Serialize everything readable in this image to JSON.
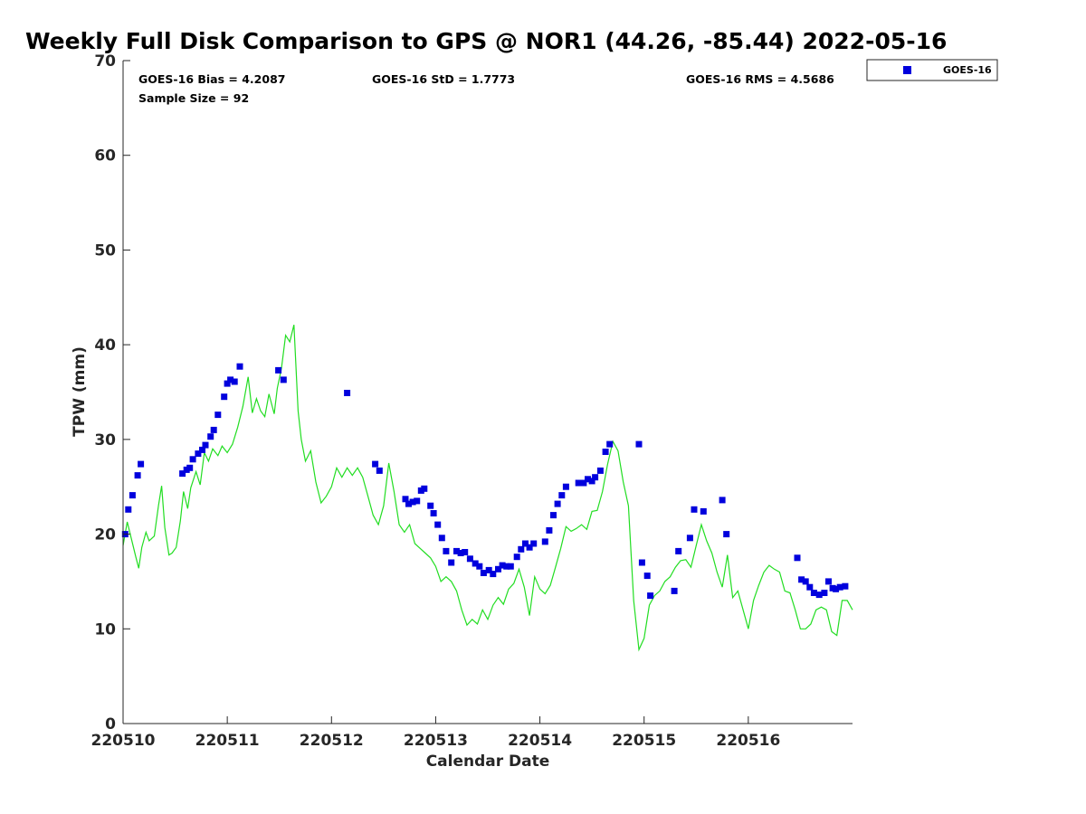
{
  "title": "Weekly Full Disk Comparison to GPS @ NOR1 (44.26, -85.44) 2022-05-16",
  "stats": {
    "bias": "GOES-16 Bias = 4.2087",
    "std": "GOES-16 StD = 1.7773",
    "rms": "GOES-16 RMS = 4.5686",
    "sample": "Sample Size = 92"
  },
  "legend": {
    "label": "GOES-16",
    "position": "top-right-outside"
  },
  "colors": {
    "goes": "#0000dd",
    "gps": "#22dd22",
    "axis": "#262626"
  },
  "chart_data": {
    "type": "scatter",
    "title": "Weekly Full Disk Comparison to GPS @ NOR1 (44.26, -85.44) 2022-05-16",
    "xlabel": "Calendar Date",
    "ylabel": "TPW (mm)",
    "xlim": [
      220510,
      220517
    ],
    "ylim": [
      0,
      70
    ],
    "x_ticks": [
      220510,
      220511,
      220512,
      220513,
      220514,
      220515,
      220516
    ],
    "x_tick_labels": [
      "220510",
      "220511",
      "220512",
      "220513",
      "220514",
      "220515",
      "220516"
    ],
    "y_ticks": [
      0,
      10,
      20,
      30,
      40,
      50,
      60,
      70
    ],
    "y_tick_labels": [
      "0",
      "10",
      "20",
      "30",
      "40",
      "50",
      "60",
      "70"
    ],
    "grid": false,
    "series": [
      {
        "name": "GOES-16",
        "type": "scatter",
        "x": [
          220510.02,
          220510.05,
          220510.09,
          220510.14,
          220510.17,
          220510.57,
          220510.61,
          220510.64,
          220510.67,
          220510.72,
          220510.76,
          220510.79,
          220510.84,
          220510.87,
          220510.91,
          220510.97,
          220511.0,
          220511.03,
          220511.07,
          220511.12,
          220511.49,
          220511.54,
          220512.15,
          220512.42,
          220512.46,
          220512.71,
          220512.74,
          220512.78,
          220512.82,
          220512.86,
          220512.89,
          220512.95,
          220512.98,
          220513.02,
          220513.06,
          220513.1,
          220513.15,
          220513.2,
          220513.24,
          220513.28,
          220513.33,
          220513.38,
          220513.42,
          220513.46,
          220513.51,
          220513.55,
          220513.6,
          220513.64,
          220513.68,
          220513.72,
          220513.78,
          220513.82,
          220513.86,
          220513.9,
          220513.94,
          220514.05,
          220514.09,
          220514.13,
          220514.17,
          220514.21,
          220514.25,
          220514.37,
          220514.42,
          220514.46,
          220514.5,
          220514.53,
          220514.58,
          220514.63,
          220514.67,
          220514.95,
          220514.98,
          220515.03,
          220515.06,
          220515.29,
          220515.33,
          220515.44,
          220515.48,
          220515.57,
          220515.75,
          220515.79,
          220516.47,
          220516.51,
          220516.55,
          220516.59,
          220516.63,
          220516.68,
          220516.73,
          220516.77,
          220516.81,
          220516.84,
          220516.88,
          220516.93
        ],
        "y": [
          20.0,
          22.6,
          24.1,
          26.2,
          27.4,
          26.4,
          26.8,
          27.0,
          27.9,
          28.5,
          28.9,
          29.4,
          30.3,
          31.0,
          32.6,
          34.5,
          35.9,
          36.3,
          36.1,
          37.7,
          37.3,
          36.3,
          34.9,
          27.4,
          26.7,
          23.7,
          23.2,
          23.4,
          23.5,
          24.6,
          24.8,
          23.0,
          22.2,
          21.0,
          19.6,
          18.2,
          17.0,
          18.2,
          18.0,
          18.1,
          17.4,
          16.9,
          16.6,
          15.9,
          16.2,
          15.8,
          16.3,
          16.7,
          16.6,
          16.6,
          17.6,
          18.4,
          19.0,
          18.6,
          19.0,
          19.2,
          20.4,
          22.0,
          23.2,
          24.1,
          25.0,
          25.4,
          25.4,
          25.8,
          25.6,
          26.0,
          26.7,
          28.7,
          29.5,
          29.5,
          17.0,
          15.6,
          13.5,
          14.0,
          18.2,
          19.6,
          22.6,
          22.4,
          23.6,
          20.0,
          17.5,
          15.2,
          15.0,
          14.4,
          13.8,
          13.6,
          13.8,
          15.0,
          14.3,
          14.2,
          14.4,
          14.5
        ]
      },
      {
        "name": "",
        "type": "line",
        "x": [
          220510.0,
          220510.04,
          220510.08,
          220510.12,
          220510.15,
          220510.18,
          220510.22,
          220510.25,
          220510.3,
          220510.34,
          220510.37,
          220510.4,
          220510.44,
          220510.47,
          220510.51,
          220510.55,
          220510.58,
          220510.62,
          220510.65,
          220510.7,
          220510.74,
          220510.78,
          220510.82,
          220510.86,
          220510.91,
          220510.95,
          220511.0,
          220511.05,
          220511.1,
          220511.15,
          220511.2,
          220511.24,
          220511.28,
          220511.32,
          220511.36,
          220511.4,
          220511.45,
          220511.48,
          220511.52,
          220511.56,
          220511.6,
          220511.64,
          220511.68,
          220511.71,
          220511.75,
          220511.8,
          220511.85,
          220511.9,
          220511.95,
          220512.0,
          220512.05,
          220512.1,
          220512.15,
          220512.2,
          220512.25,
          220512.3,
          220512.35,
          220512.4,
          220512.45,
          220512.5,
          220512.55,
          220512.6,
          220512.65,
          220512.7,
          220512.75,
          220512.8,
          220512.85,
          220512.9,
          220512.95,
          220513.0,
          220513.05,
          220513.1,
          220513.15,
          220513.2,
          220513.25,
          220513.3,
          220513.35,
          220513.4,
          220513.45,
          220513.5,
          220513.55,
          220513.6,
          220513.65,
          220513.7,
          220513.75,
          220513.8,
          220513.85,
          220513.9,
          220513.95,
          220514.0,
          220514.05,
          220514.1,
          220514.15,
          220514.2,
          220514.25,
          220514.3,
          220514.35,
          220514.4,
          220514.45,
          220514.5,
          220514.55,
          220514.6,
          220514.65,
          220514.7,
          220514.75,
          220514.8,
          220514.85,
          220514.9,
          220514.95,
          220515.0,
          220515.05,
          220515.1,
          220515.15,
          220515.2,
          220515.25,
          220515.3,
          220515.35,
          220515.4,
          220515.45,
          220515.5,
          220515.55,
          220515.6,
          220515.65,
          220515.7,
          220515.75,
          220515.8,
          220515.85,
          220515.9,
          220515.95,
          220516.0,
          220516.05,
          220516.1,
          220516.15,
          220516.2,
          220516.25,
          220516.3,
          220516.35,
          220516.4,
          220516.45,
          220516.5,
          220516.55,
          220516.6,
          220516.65,
          220516.7,
          220516.75,
          220516.8,
          220516.85,
          220516.9,
          220516.95,
          220517.0
        ],
        "y": [
          18.8,
          21.3,
          19.5,
          17.7,
          16.4,
          18.6,
          20.2,
          19.3,
          19.8,
          23.0,
          25.1,
          20.7,
          17.8,
          18.0,
          18.6,
          21.4,
          24.5,
          22.7,
          24.9,
          26.6,
          25.2,
          28.6,
          27.7,
          29.0,
          28.3,
          29.3,
          28.6,
          29.5,
          31.3,
          33.5,
          36.6,
          32.8,
          34.3,
          33.0,
          32.4,
          34.8,
          32.7,
          35.4,
          37.5,
          41.0,
          40.3,
          42.1,
          33.0,
          30.0,
          27.7,
          28.8,
          25.5,
          23.3,
          24.0,
          25.0,
          27.0,
          26.0,
          27.0,
          26.2,
          27.0,
          26.0,
          24.0,
          22.0,
          21.0,
          23.0,
          27.5,
          24.5,
          21.0,
          20.2,
          21.0,
          19.0,
          18.5,
          18.0,
          17.5,
          16.6,
          15.0,
          15.5,
          15.0,
          14.0,
          12.0,
          10.4,
          11.0,
          10.5,
          12.0,
          11.0,
          12.5,
          13.3,
          12.6,
          14.2,
          14.8,
          16.3,
          14.4,
          11.4,
          15.5,
          14.2,
          13.7,
          14.6,
          16.5,
          18.5,
          20.8,
          20.3,
          20.6,
          21.0,
          20.5,
          22.4,
          22.5,
          24.5,
          27.4,
          29.8,
          28.8,
          25.5,
          23.0,
          13.0,
          7.8,
          9.0,
          12.5,
          13.5,
          14.0,
          15.0,
          15.5,
          16.5,
          17.2,
          17.3,
          16.5,
          18.8,
          21.0,
          19.3,
          18.0,
          16.0,
          14.4,
          17.8,
          13.3,
          14.0,
          12.0,
          10.0,
          13.0,
          14.6,
          16.0,
          16.7,
          16.3,
          16.0,
          14.0,
          13.8,
          12.0,
          10.0,
          10.0,
          10.5,
          12.0,
          12.3,
          12.0,
          9.7,
          9.3,
          13.0,
          13.0,
          12.0
        ]
      }
    ]
  }
}
